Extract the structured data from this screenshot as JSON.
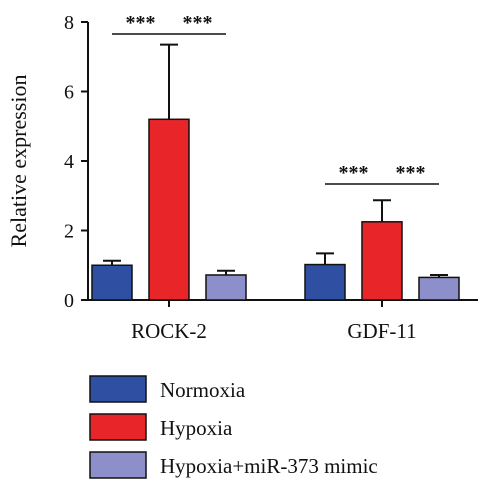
{
  "chart_data": {
    "type": "bar",
    "categories": [
      "ROCK-2",
      "GDF-11"
    ],
    "series": [
      {
        "name": "Normoxia",
        "color": "#2f4fa2",
        "values": [
          1.0,
          1.02
        ],
        "errors": [
          0.13,
          0.32
        ]
      },
      {
        "name": "Hypoxia",
        "color": "#e8262a",
        "values": [
          5.2,
          2.25
        ],
        "errors": [
          2.15,
          0.62
        ]
      },
      {
        "name": "Hypoxia+miR-373 mimic",
        "color": "#8c8fc9",
        "values": [
          0.72,
          0.65
        ],
        "errors": [
          0.12,
          0.07
        ]
      }
    ],
    "ylabel": "Relative expression",
    "xlabel": "",
    "ylim": [
      0,
      8
    ],
    "yticks": [
      0,
      2,
      4,
      6,
      8
    ],
    "significance": [
      {
        "category": "ROCK-2",
        "from_series": 0,
        "to_series": 1,
        "label": "***"
      },
      {
        "category": "ROCK-2",
        "from_series": 1,
        "to_series": 2,
        "label": "***"
      },
      {
        "category": "GDF-11",
        "from_series": 0,
        "to_series": 1,
        "label": "***"
      },
      {
        "category": "GDF-11",
        "from_series": 1,
        "to_series": 2,
        "label": "***"
      }
    ],
    "legend_position": "bottom-left",
    "grid": false
  }
}
